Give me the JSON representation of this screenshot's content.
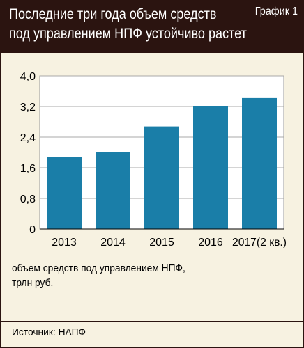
{
  "header": {
    "title_line1": "Последние три года объем средств",
    "title_line2": "под управлением НПФ устойчиво растет",
    "badge": "График 1"
  },
  "colors": {
    "header_bg": "#2b1410",
    "panel_bg": "#f7f2e1",
    "bar": "#1a7ea8"
  },
  "chart_data": {
    "type": "bar",
    "categories": [
      "2013",
      "2014",
      "2015",
      "2016",
      "2017(2 кв.)"
    ],
    "values": [
      1.89,
      2.0,
      2.68,
      3.2,
      3.42
    ],
    "ylim": [
      0,
      4.0
    ],
    "yticks": [
      "0",
      "0,8",
      "1,6",
      "2,4",
      "3,2",
      "4,0"
    ],
    "grid": true
  },
  "note": {
    "line1": "объем средств под управлением НПФ,",
    "line2": "трлн руб."
  },
  "source": "Источник: НАПФ"
}
